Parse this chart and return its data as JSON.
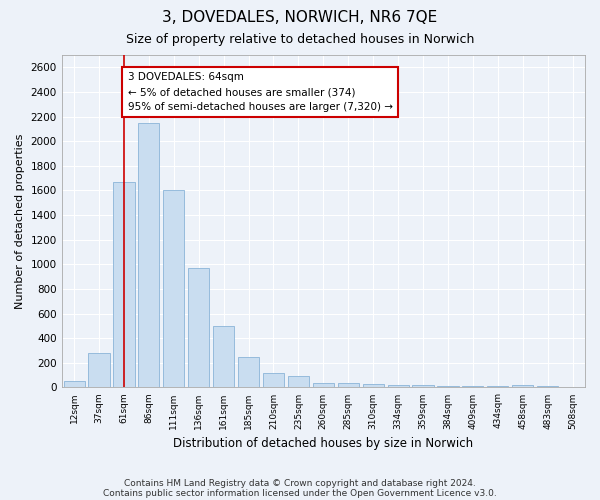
{
  "title": "3, DOVEDALES, NORWICH, NR6 7QE",
  "subtitle": "Size of property relative to detached houses in Norwich",
  "xlabel": "Distribution of detached houses by size in Norwich",
  "ylabel": "Number of detached properties",
  "bar_color": "#c9ddf0",
  "bar_edge_color": "#8ab4d8",
  "background_color": "#edf2f9",
  "grid_color": "#ffffff",
  "categories": [
    "12sqm",
    "37sqm",
    "61sqm",
    "86sqm",
    "111sqm",
    "136sqm",
    "161sqm",
    "185sqm",
    "210sqm",
    "235sqm",
    "260sqm",
    "285sqm",
    "310sqm",
    "334sqm",
    "359sqm",
    "384sqm",
    "409sqm",
    "434sqm",
    "458sqm",
    "483sqm",
    "508sqm"
  ],
  "values": [
    50,
    280,
    1670,
    2150,
    1600,
    970,
    500,
    250,
    115,
    90,
    40,
    40,
    25,
    20,
    20,
    15,
    15,
    10,
    20,
    10,
    5
  ],
  "ylim": [
    0,
    2700
  ],
  "yticks": [
    0,
    200,
    400,
    600,
    800,
    1000,
    1200,
    1400,
    1600,
    1800,
    2000,
    2200,
    2400,
    2600
  ],
  "property_bar_index": 2,
  "annotation_text": "3 DOVEDALES: 64sqm\n← 5% of detached houses are smaller (374)\n95% of semi-detached houses are larger (7,320) →",
  "annotation_box_color": "#ffffff",
  "annotation_box_edge_color": "#cc0000",
  "red_line_color": "#cc0000",
  "footer1": "Contains HM Land Registry data © Crown copyright and database right 2024.",
  "footer2": "Contains public sector information licensed under the Open Government Licence v3.0."
}
